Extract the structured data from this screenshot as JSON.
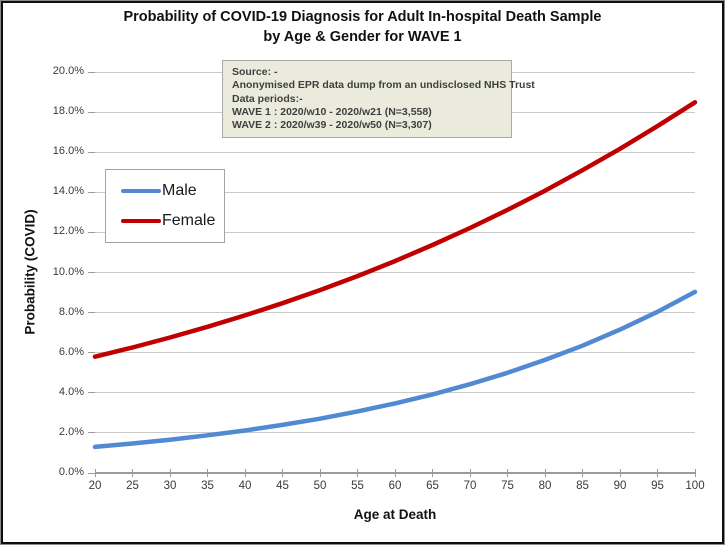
{
  "header": {
    "title_line1": "Probability of COVID-19 Diagnosis for Adult In-hospital Death Sample",
    "title_line2": "by Age & Gender for WAVE 1"
  },
  "source_box": {
    "lines": [
      "Source: -",
      "Anonymised EPR data dump from an undisclosed NHS Trust",
      "Data periods:-",
      "WAVE 1 : 2020/w10 - 2020/w21 (N=3,558)",
      "WAVE 2 : 2020/w39 - 2020/w50 (N=3,307)"
    ]
  },
  "legend": {
    "items": [
      {
        "label": "Male",
        "color": "#5289d3"
      },
      {
        "label": "Female",
        "color": "#c00000"
      }
    ]
  },
  "axes": {
    "x_title": "Age at Death",
    "y_title": "Probability (COVID)"
  },
  "colors": {
    "male_line": "#5289d3",
    "female_line": "#c00000",
    "gridline": "#cacaca",
    "axis_line": "#9b9b9b",
    "source_box_fill": "#eaebdc"
  },
  "chart_data": {
    "type": "line",
    "title": "Probability of COVID-19 Diagnosis for Adult In-hospital Death Sample by Age & Gender for WAVE 1",
    "xlabel": "Age at Death",
    "ylabel": "Probability (COVID)",
    "xlim": [
      20,
      100
    ],
    "ylim": [
      0,
      20
    ],
    "grid": "horizontal",
    "legend_position": "inside-left",
    "x": [
      20,
      25,
      30,
      35,
      40,
      45,
      50,
      55,
      60,
      65,
      70,
      75,
      80,
      85,
      90,
      95,
      100
    ],
    "series": [
      {
        "name": "Male",
        "color": "#5289d3",
        "values": [
          1.3,
          1.47,
          1.66,
          1.88,
          2.12,
          2.4,
          2.71,
          3.07,
          3.47,
          3.92,
          4.43,
          5.0,
          5.64,
          6.35,
          7.15,
          8.04,
          9.03
        ]
      },
      {
        "name": "Female",
        "color": "#c00000",
        "values": [
          5.8,
          6.26,
          6.76,
          7.29,
          7.86,
          8.47,
          9.12,
          9.82,
          10.57,
          11.37,
          12.22,
          13.12,
          14.08,
          15.1,
          16.17,
          17.3,
          18.49
        ]
      }
    ],
    "y_ticks": [
      {
        "value": 0,
        "label": "0.0%"
      },
      {
        "value": 2,
        "label": "2.0%"
      },
      {
        "value": 4,
        "label": "4.0%"
      },
      {
        "value": 6,
        "label": "6.0%"
      },
      {
        "value": 8,
        "label": "8.0%"
      },
      {
        "value": 10,
        "label": "10.0%"
      },
      {
        "value": 12,
        "label": "12.0%"
      },
      {
        "value": 14,
        "label": "14.0%"
      },
      {
        "value": 16,
        "label": "16.0%"
      },
      {
        "value": 18,
        "label": "18.0%"
      },
      {
        "value": 20,
        "label": "20.0%"
      }
    ],
    "x_ticks": [
      {
        "value": 20,
        "label": "20"
      },
      {
        "value": 25,
        "label": "25"
      },
      {
        "value": 30,
        "label": "30"
      },
      {
        "value": 35,
        "label": "35"
      },
      {
        "value": 40,
        "label": "40"
      },
      {
        "value": 45,
        "label": "45"
      },
      {
        "value": 50,
        "label": "50"
      },
      {
        "value": 55,
        "label": "55"
      },
      {
        "value": 60,
        "label": "60"
      },
      {
        "value": 65,
        "label": "65"
      },
      {
        "value": 70,
        "label": "70"
      },
      {
        "value": 75,
        "label": "75"
      },
      {
        "value": 80,
        "label": "80"
      },
      {
        "value": 85,
        "label": "85"
      },
      {
        "value": 90,
        "label": "90"
      },
      {
        "value": 95,
        "label": "95"
      },
      {
        "value": 100,
        "label": "100"
      }
    ]
  }
}
